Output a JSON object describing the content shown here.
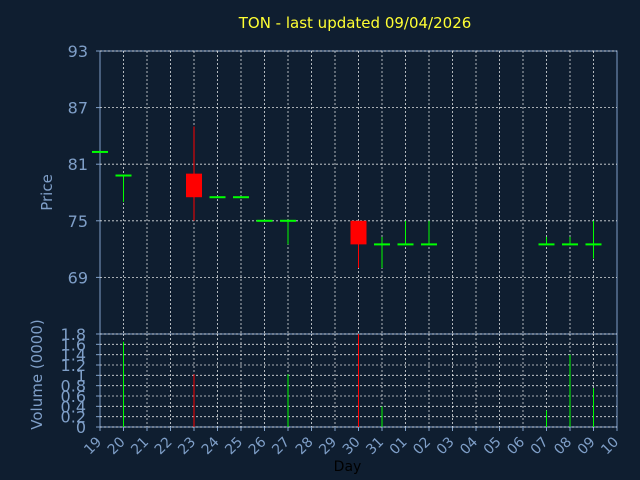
{
  "title": "TON - last updated 09/04/2026",
  "colors": {
    "background": "#0f1e30",
    "axis": "#7f9fc8",
    "grid": "#ffffff",
    "title": "#ffff33",
    "up": "#00ff00",
    "down": "#ff0000"
  },
  "chart_data": [
    {
      "type": "candlestick",
      "ylabel": "Price",
      "ylim": [
        63,
        93
      ],
      "yticks": [
        69,
        75,
        81,
        87,
        93
      ],
      "grid": true,
      "x_categories": [
        "19",
        "20",
        "21",
        "22",
        "23",
        "24",
        "25",
        "26",
        "27",
        "28",
        "29",
        "30",
        "31",
        "01",
        "02",
        "03",
        "04",
        "05",
        "06",
        "07",
        "08",
        "09",
        "10"
      ],
      "candles": [
        {
          "x": "19",
          "open": 82.3,
          "high": 82.3,
          "low": 82.3,
          "close": 82.3,
          "direction": "up"
        },
        {
          "x": "20",
          "open": 79.8,
          "high": 79.8,
          "low": 77.0,
          "close": 79.8,
          "direction": "up"
        },
        {
          "x": "23",
          "open": 80.0,
          "high": 85.0,
          "low": 75.0,
          "close": 77.5,
          "direction": "down"
        },
        {
          "x": "24",
          "open": 77.5,
          "high": 77.5,
          "low": 77.5,
          "close": 77.5,
          "direction": "up"
        },
        {
          "x": "25",
          "open": 77.5,
          "high": 77.5,
          "low": 77.5,
          "close": 77.5,
          "direction": "up"
        },
        {
          "x": "26",
          "open": 75.0,
          "high": 75.0,
          "low": 75.0,
          "close": 75.0,
          "direction": "up"
        },
        {
          "x": "27",
          "open": 75.0,
          "high": 75.0,
          "low": 72.5,
          "close": 75.0,
          "direction": "up"
        },
        {
          "x": "30",
          "open": 75.0,
          "high": 75.0,
          "low": 70.0,
          "close": 72.5,
          "direction": "down"
        },
        {
          "x": "31",
          "open": 72.5,
          "high": 73.3,
          "low": 70.0,
          "close": 72.5,
          "direction": "up"
        },
        {
          "x": "01",
          "open": 72.5,
          "high": 75.0,
          "low": 72.5,
          "close": 72.5,
          "direction": "up"
        },
        {
          "x": "02",
          "open": 72.5,
          "high": 75.0,
          "low": 72.5,
          "close": 72.5,
          "direction": "up"
        },
        {
          "x": "07",
          "open": 72.5,
          "high": 73.3,
          "low": 72.5,
          "close": 72.5,
          "direction": "up"
        },
        {
          "x": "08",
          "open": 72.5,
          "high": 73.3,
          "low": 72.5,
          "close": 72.5,
          "direction": "up"
        },
        {
          "x": "09",
          "open": 72.5,
          "high": 75.0,
          "low": 71.0,
          "close": 72.5,
          "direction": "up"
        }
      ]
    },
    {
      "type": "bar",
      "xlabel": "Day",
      "ylabel": "Volume (0000)",
      "ylim": [
        0,
        1.8
      ],
      "yticks": [
        "0",
        "0.2",
        "0.4",
        "0.6",
        "0.8",
        "1",
        "1.2",
        "1.4",
        "1.6",
        "1.8"
      ],
      "grid": true,
      "x_categories": [
        "19",
        "20",
        "21",
        "22",
        "23",
        "24",
        "25",
        "26",
        "27",
        "28",
        "29",
        "30",
        "31",
        "01",
        "02",
        "03",
        "04",
        "05",
        "06",
        "07",
        "08",
        "09",
        "10"
      ],
      "bars": [
        {
          "x": "20",
          "value": 1.65,
          "direction": "up"
        },
        {
          "x": "23",
          "value": 1.02,
          "direction": "down"
        },
        {
          "x": "27",
          "value": 1.02,
          "direction": "up"
        },
        {
          "x": "30",
          "value": 1.8,
          "direction": "down"
        },
        {
          "x": "31",
          "value": 0.4,
          "direction": "up"
        },
        {
          "x": "07",
          "value": 0.32,
          "direction": "up"
        },
        {
          "x": "08",
          "value": 1.4,
          "direction": "up"
        },
        {
          "x": "09",
          "value": 0.75,
          "direction": "up"
        }
      ]
    }
  ]
}
